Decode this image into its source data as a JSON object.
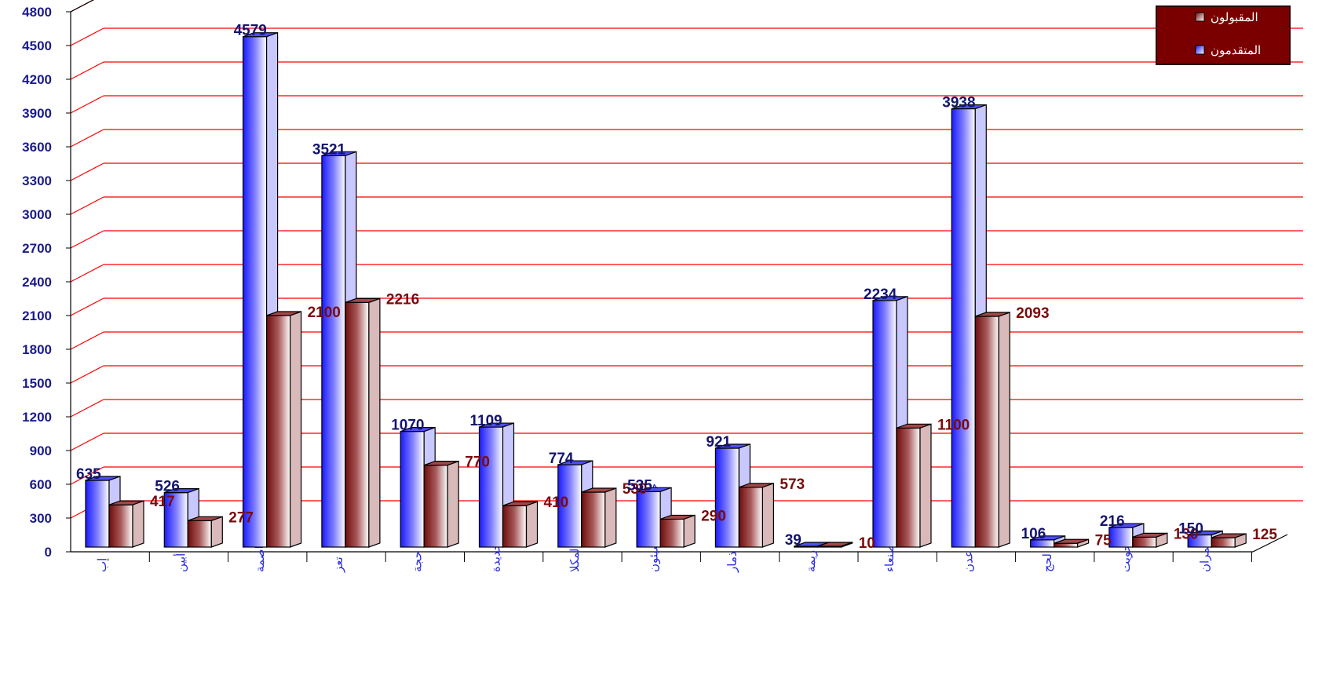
{
  "chart_data": {
    "type": "bar",
    "categories": [
      "إب",
      "أبين",
      "امانة العاصمة",
      "تعز",
      "حجة",
      "الحديدة",
      "حضرموت/ المكلا",
      "حضرموت / سيئون",
      "ذمار",
      "ريمة",
      "صنعاء",
      "عدن",
      "لحج",
      "المحويت",
      "عمران"
    ],
    "series": [
      {
        "name": "المتقدمون",
        "values": [
          635,
          526,
          4579,
          3521,
          1070,
          1109,
          774,
          535,
          921,
          39,
          2234,
          3938,
          106,
          216,
          150
        ]
      },
      {
        "name": "المقبولون",
        "values": [
          417,
          277,
          2100,
          2216,
          770,
          410,
          530,
          290,
          573,
          10,
          1100,
          2093,
          75,
          130,
          125
        ]
      }
    ],
    "ylim": [
      0,
      4800
    ],
    "yticks": [
      0,
      300,
      600,
      900,
      1200,
      1500,
      1800,
      2100,
      2400,
      2700,
      3000,
      3300,
      3600,
      3900,
      4200,
      4500,
      4800
    ],
    "grid": true,
    "legend_position": "top-right",
    "colors": {
      "applicants": "#3b3bf0",
      "accepted": "#8b1a1a",
      "grid": "#ff0000",
      "legend_bg": "#7a0000",
      "label_applicants": "#14146e",
      "label_accepted": "#7a0a0a"
    }
  }
}
